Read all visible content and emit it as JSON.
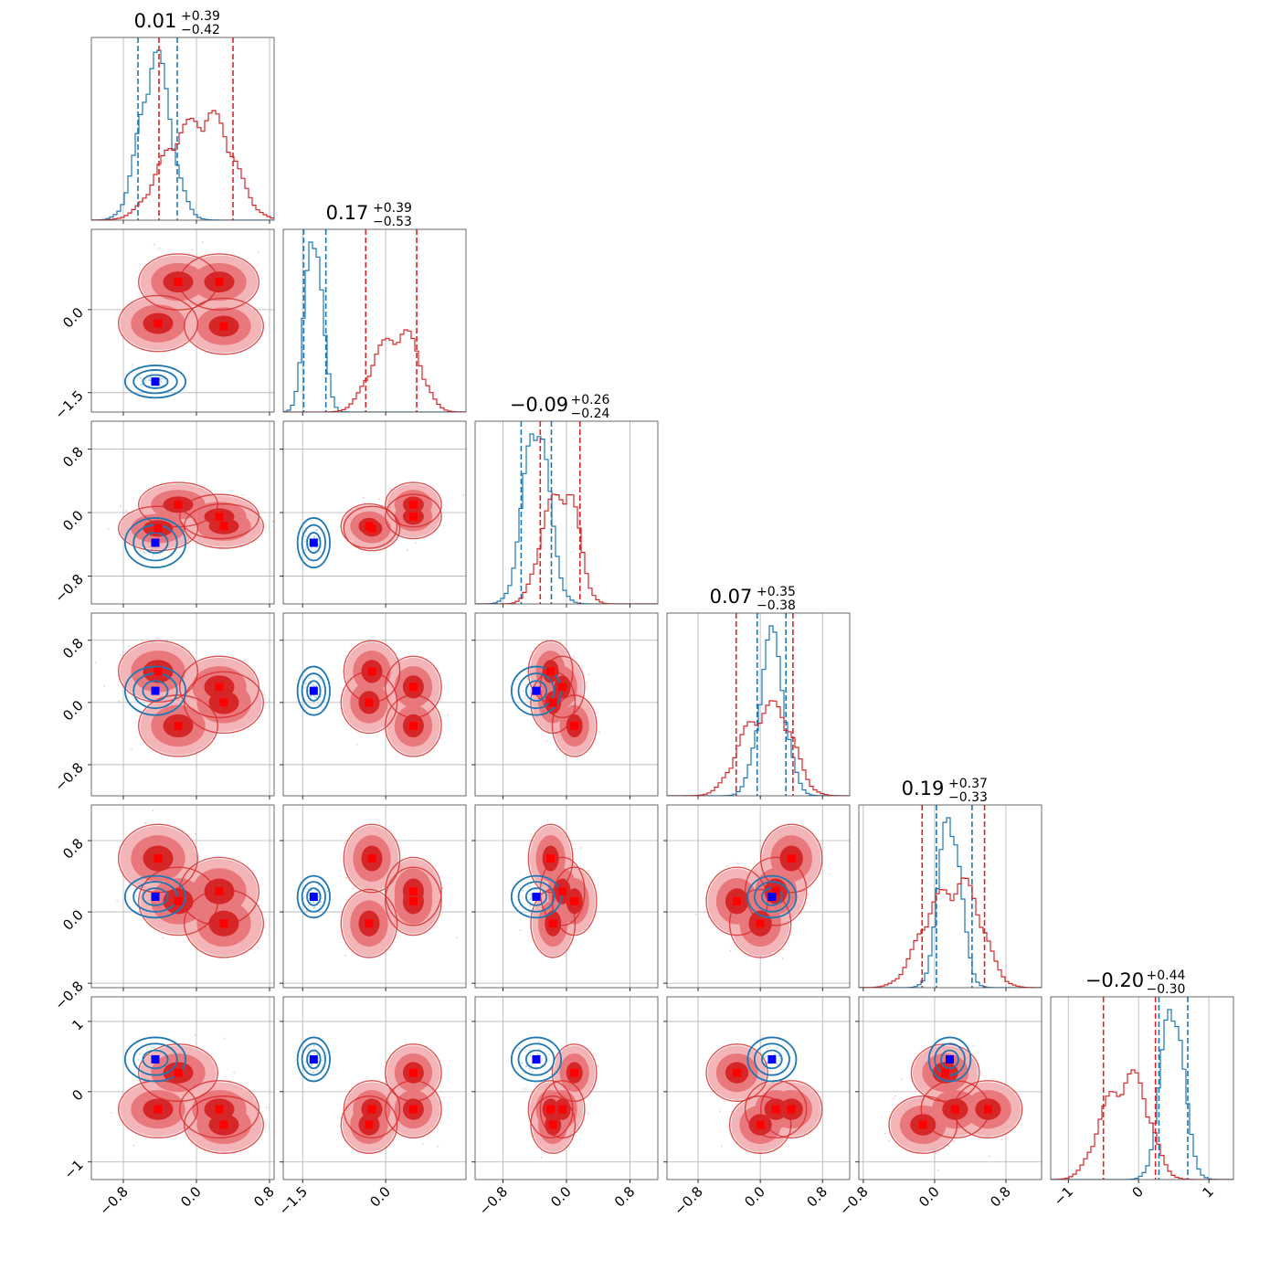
{
  "chart_data": {
    "type": "corner",
    "colors": {
      "blue": "#1f77b4",
      "red": "#d62728",
      "blue_marker": "#0000ff",
      "red_marker": "#ff0000"
    },
    "series": [
      {
        "color": "#1f77b4",
        "hist_mean": [
          -0.45,
          -1.3,
          -0.38,
          0.15,
          0.17,
          0.48
        ],
        "hist_sd": [
          0.17,
          0.15,
          0.16,
          0.16,
          0.12,
          0.16
        ],
        "modes": [
          [
            -0.45,
            -1.3,
            -0.38,
            0.15,
            0.17,
            0.46
          ]
        ],
        "quantiles": [
          [
            -0.64,
            -0.21
          ],
          [
            -1.48,
            -1.08
          ],
          [
            -0.57,
            -0.19
          ],
          [
            -0.04,
            0.33
          ],
          [
            0.02,
            0.42
          ],
          [
            0.29,
            0.7
          ]
        ]
      },
      {
        "color": "#d62728",
        "hist_mean": [
          0.01,
          0.17,
          -0.09,
          0.07,
          0.19,
          -0.2
        ],
        "hist_sd": [
          0.4,
          0.46,
          0.25,
          0.36,
          0.35,
          0.37
        ],
        "modes": [
          [
            -0.42,
            -0.25,
            -0.2,
            0.4,
            0.6,
            -0.25
          ],
          [
            -0.2,
            0.5,
            0.1,
            -0.3,
            0.12,
            0.27
          ],
          [
            0.25,
            0.5,
            -0.05,
            0.2,
            0.23,
            -0.25
          ],
          [
            0.3,
            -0.3,
            -0.17,
            0.0,
            -0.13,
            -0.47
          ]
        ],
        "quantiles": [
          [
            -0.41,
            0.4
          ],
          [
            -0.36,
            0.56
          ],
          [
            -0.33,
            0.17
          ],
          [
            -0.31,
            0.42
          ],
          [
            -0.14,
            0.56
          ],
          [
            -0.5,
            0.24
          ]
        ]
      }
    ],
    "titles": [
      {
        "value": "0.01",
        "plus": "+0.39",
        "minus": "−0.42"
      },
      {
        "value": "0.17",
        "plus": "+0.39",
        "minus": "−0.53"
      },
      {
        "value": "−0.09",
        "plus": "+0.26",
        "minus": "−0.24"
      },
      {
        "value": "0.07",
        "plus": "+0.35",
        "minus": "−0.38"
      },
      {
        "value": "0.19",
        "plus": "+0.37",
        "minus": "−0.33"
      },
      {
        "value": "−0.20",
        "plus": "+0.44",
        "minus": "−0.30"
      }
    ],
    "params": [
      {
        "range": [
          -1.15,
          0.85
        ],
        "ticks": [
          -0.8,
          0.0,
          0.8
        ],
        "tick_labels": [
          "−0.8",
          "0.0",
          "0.8"
        ]
      },
      {
        "range": [
          -1.85,
          1.45
        ],
        "ticks": [
          -1.5,
          0.0
        ],
        "tick_labels": [
          "−1.5",
          "0.0"
        ]
      },
      {
        "range": [
          -1.15,
          1.15
        ],
        "ticks": [
          -0.8,
          0.0,
          0.8
        ],
        "tick_labels": [
          "−0.8",
          "0.0",
          "0.8"
        ]
      },
      {
        "range": [
          -1.2,
          1.15
        ],
        "ticks": [
          -0.8,
          0.0,
          0.8
        ],
        "tick_labels": [
          "−0.8",
          "0.0",
          "0.8"
        ]
      },
      {
        "range": [
          -0.85,
          1.2
        ],
        "ticks": [
          -0.8,
          0.0,
          0.8
        ],
        "tick_labels": [
          "−0.8",
          "0.0",
          "0.8"
        ]
      },
      {
        "range": [
          -1.25,
          1.35
        ],
        "ticks": [
          -1,
          0,
          1
        ],
        "tick_labels": [
          "−1",
          "0",
          "1"
        ]
      }
    ],
    "grid": true
  }
}
